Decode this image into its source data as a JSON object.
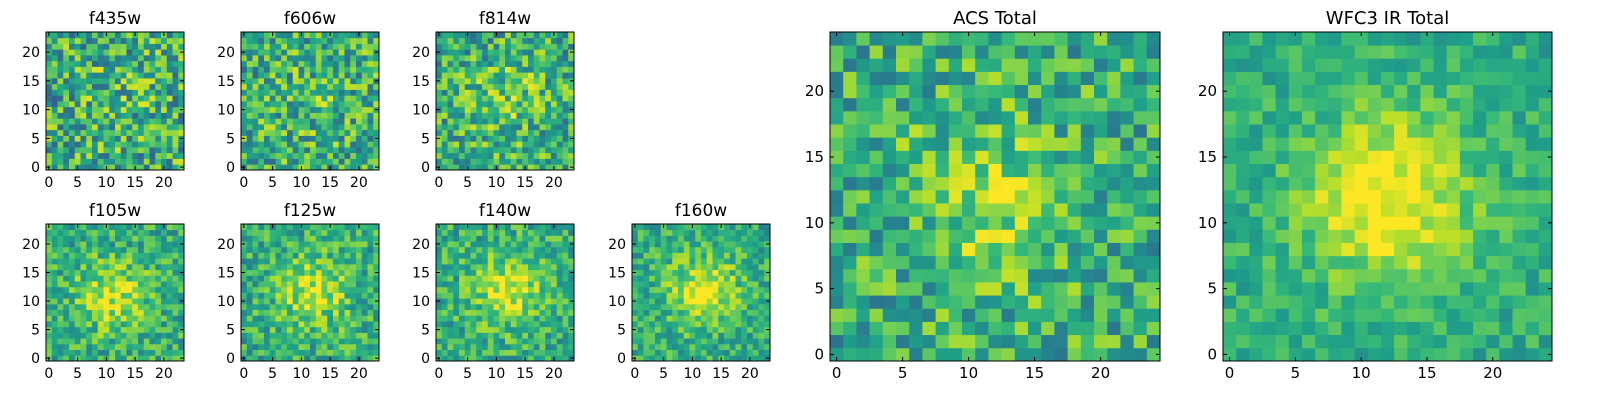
{
  "chart_data": [
    {
      "type": "heatmap",
      "title": "f435w",
      "grid": false,
      "colormap": "viridis",
      "size": 24,
      "xlim": [
        -0.5,
        23.5
      ],
      "ylim": [
        -0.5,
        23.5
      ],
      "xticks": [
        0,
        5,
        10,
        15,
        20
      ],
      "yticks": [
        0,
        5,
        10,
        15,
        20
      ],
      "source_spread": 0.1,
      "peak": [
        12,
        12
      ],
      "noise_level": 0.62
    },
    {
      "type": "heatmap",
      "title": "f606w",
      "grid": false,
      "colormap": "viridis",
      "size": 24,
      "xlim": [
        -0.5,
        23.5
      ],
      "ylim": [
        -0.5,
        23.5
      ],
      "xticks": [
        0,
        5,
        10,
        15,
        20
      ],
      "yticks": [
        0,
        5,
        10,
        15,
        20
      ],
      "source_spread": 0.15,
      "peak": [
        12,
        12
      ],
      "noise_level": 0.58
    },
    {
      "type": "heatmap",
      "title": "f814w",
      "grid": false,
      "colormap": "viridis",
      "size": 24,
      "xlim": [
        -0.5,
        23.5
      ],
      "ylim": [
        -0.5,
        23.5
      ],
      "xticks": [
        0,
        5,
        10,
        15,
        20
      ],
      "yticks": [
        0,
        5,
        10,
        15,
        20
      ],
      "source_spread": 0.3,
      "peak": [
        12,
        12
      ],
      "noise_level": 0.55
    },
    {
      "type": "heatmap",
      "title": "f105w",
      "grid": false,
      "colormap": "viridis",
      "size": 24,
      "xlim": [
        -0.5,
        23.5
      ],
      "ylim": [
        -0.5,
        23.5
      ],
      "xticks": [
        0,
        5,
        10,
        15,
        20
      ],
      "yticks": [
        0,
        5,
        10,
        15,
        20
      ],
      "source_spread": 0.55,
      "peak": [
        11,
        11
      ],
      "noise_level": 0.4
    },
    {
      "type": "heatmap",
      "title": "f125w",
      "grid": false,
      "colormap": "viridis",
      "size": 24,
      "xlim": [
        -0.5,
        23.5
      ],
      "ylim": [
        -0.5,
        23.5
      ],
      "xticks": [
        0,
        5,
        10,
        15,
        20
      ],
      "yticks": [
        0,
        5,
        10,
        15,
        20
      ],
      "source_spread": 0.55,
      "peak": [
        12,
        12
      ],
      "noise_level": 0.42
    },
    {
      "type": "heatmap",
      "title": "f140w",
      "grid": false,
      "colormap": "viridis",
      "size": 24,
      "xlim": [
        -0.5,
        23.5
      ],
      "ylim": [
        -0.5,
        23.5
      ],
      "xticks": [
        0,
        5,
        10,
        15,
        20
      ],
      "yticks": [
        0,
        5,
        10,
        15,
        20
      ],
      "source_spread": 0.55,
      "peak": [
        12,
        12
      ],
      "noise_level": 0.4
    },
    {
      "type": "heatmap",
      "title": "f160w",
      "grid": false,
      "colormap": "viridis",
      "size": 24,
      "xlim": [
        -0.5,
        23.5
      ],
      "ylim": [
        -0.5,
        23.5
      ],
      "xticks": [
        0,
        5,
        10,
        15,
        20
      ],
      "yticks": [
        0,
        5,
        10,
        15,
        20
      ],
      "source_spread": 0.6,
      "peak": [
        12,
        12
      ],
      "noise_level": 0.36
    },
    {
      "type": "heatmap",
      "title": "ACS Total",
      "grid": false,
      "colormap": "viridis",
      "size": 25,
      "xlim": [
        -0.5,
        24.5
      ],
      "ylim": [
        -0.5,
        24.5
      ],
      "xticks": [
        0,
        5,
        10,
        15,
        20
      ],
      "yticks": [
        0,
        5,
        10,
        15,
        20
      ],
      "source_spread": 0.4,
      "peak": [
        12,
        12
      ],
      "noise_level": 0.48
    },
    {
      "type": "heatmap",
      "title": "WFC3 IR Total",
      "grid": false,
      "colormap": "viridis",
      "size": 25,
      "xlim": [
        -0.5,
        24.5
      ],
      "ylim": [
        -0.5,
        24.5
      ],
      "xticks": [
        0,
        5,
        10,
        15,
        20
      ],
      "yticks": [
        0,
        5,
        10,
        15,
        20
      ],
      "source_spread": 0.75,
      "peak": [
        12,
        12
      ],
      "noise_level": 0.26
    }
  ]
}
